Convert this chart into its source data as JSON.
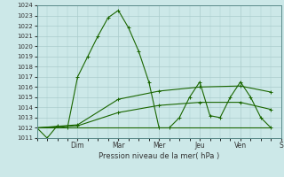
{
  "title": "Pression niveau de la mer( hPa )",
  "bg_color": "#cce8e8",
  "line_color": "#1a6600",
  "grid_color": "#aacccc",
  "ylim": [
    1011,
    1024
  ],
  "yticks": [
    1011,
    1012,
    1013,
    1014,
    1015,
    1016,
    1017,
    1018,
    1019,
    1020,
    1021,
    1022,
    1023,
    1024
  ],
  "day_labels": [
    "Dim",
    "Mar",
    "Mer",
    "Jeu",
    "Ven",
    "S"
  ],
  "day_positions": [
    2,
    4,
    6,
    8,
    10,
    12
  ],
  "series": [
    {
      "x": [
        0,
        0.5,
        1,
        1.5,
        2,
        2.5,
        3,
        3.5,
        4,
        4.5,
        5,
        5.5,
        6,
        6.5,
        7,
        7.5,
        8,
        8.5,
        9,
        9.5,
        10,
        10.5,
        11,
        11.5
      ],
      "y": [
        1012.0,
        1011.0,
        1012.2,
        1012.0,
        1017.0,
        1019.0,
        1021.0,
        1022.8,
        1023.5,
        1021.8,
        1019.5,
        1016.5,
        1012.0,
        1012.0,
        1013.0,
        1015.0,
        1016.5,
        1013.2,
        1013.0,
        1015.0,
        1016.5,
        1015.0,
        1013.0,
        1012.0
      ]
    },
    {
      "x": [
        0,
        2,
        4,
        6,
        8,
        10,
        11.5
      ],
      "y": [
        1012.0,
        1012.3,
        1014.8,
        1015.6,
        1016.0,
        1016.1,
        1015.5
      ]
    },
    {
      "x": [
        0,
        2,
        4,
        6,
        8,
        10,
        11.5
      ],
      "y": [
        1012.0,
        1012.2,
        1013.5,
        1014.2,
        1014.5,
        1014.5,
        1013.8
      ]
    },
    {
      "x": [
        0,
        11.5
      ],
      "y": [
        1012.0,
        1012.0
      ]
    }
  ],
  "xlim": [
    0,
    12
  ]
}
